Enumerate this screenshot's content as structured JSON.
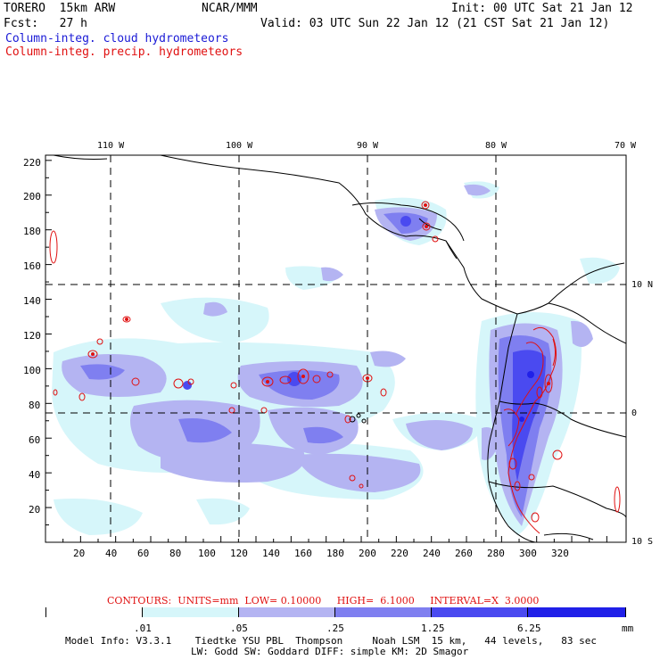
{
  "header": {
    "model": "TORERO  15km ARW",
    "center": "NCAR/MMM",
    "init": "Init: 00 UTC Sat 21 Jan 12",
    "fcst": "Fcst:   27 h",
    "valid": "Valid: 03 UTC Sun 22 Jan 12 (21 CST Sat 21 Jan 12)",
    "field1": "Column-integ. cloud hydrometeors",
    "field2": "Column-integ. precip. hydrometeors"
  },
  "map": {
    "top_lon_labels": [
      "110 W",
      "100 W",
      "90 W",
      "80 W",
      "70 W"
    ],
    "right_lat_labels": [
      "10 N",
      "0",
      "10 S"
    ],
    "left_y_ticks": [
      "220",
      "200",
      "180",
      "160",
      "140",
      "120",
      "100",
      "80",
      "60",
      "40",
      "20"
    ],
    "bottom_x_ticks": [
      "20",
      "40",
      "60",
      "80",
      "100",
      "120",
      "140",
      "160",
      "180",
      "200",
      "220",
      "240",
      "260",
      "280",
      "300",
      "320"
    ],
    "colors": {
      "level1": "#d6f6fa",
      "level2": "#b4b4f2",
      "level3": "#7f7ff0",
      "level4": "#4a4af0",
      "level5": "#2020e8",
      "contour": "#e01010",
      "coast": "#000000"
    }
  },
  "contours_info": {
    "text": "CONTOURS:  UNITS=mm  LOW= 0.10000     HIGH=  6.1000     INTERVAL=X  3.0000"
  },
  "colorbar": {
    "labels": [
      ".01",
      ".05",
      ".25",
      "1.25",
      "6.25"
    ],
    "unit": "mm"
  },
  "footer": {
    "line1": "Model Info: V3.3.1    Tiedtke YSU PBL  Thompson     Noah LSM  15 km,   44 levels,   83 sec",
    "line2": "LW: Godd SW: Goddard DIFF: simple KM: 2D Smagor"
  }
}
